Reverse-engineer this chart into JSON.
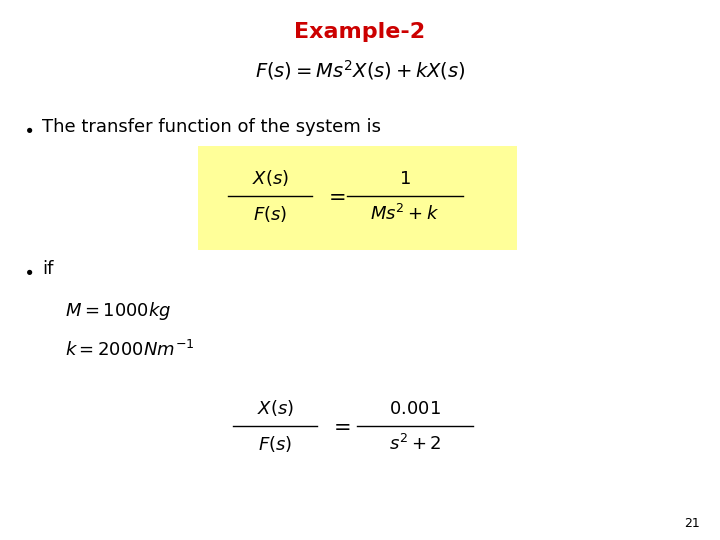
{
  "title": "Example-2",
  "title_color": "#CC0000",
  "title_fontsize": 16,
  "bg_color": "#ffffff",
  "highlight_color": "#FFFF99",
  "bullet_fontsize": 13,
  "math_fontsize": 13,
  "page_num": "21",
  "page_fontsize": 9
}
